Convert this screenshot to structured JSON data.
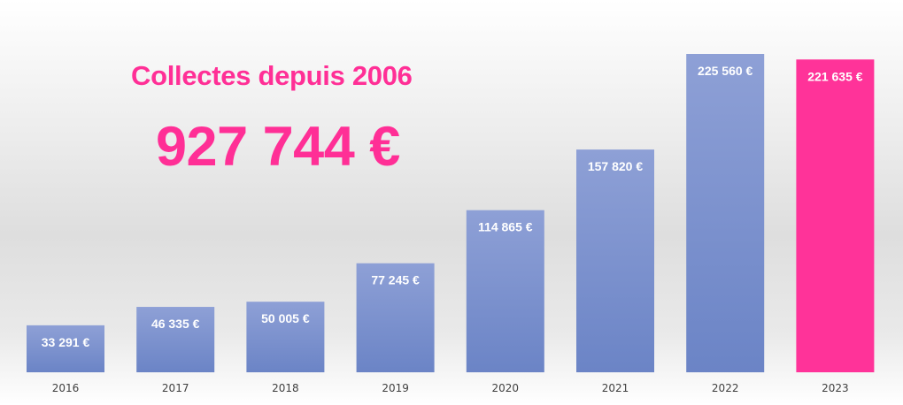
{
  "headline": "Collectes depuis 2006",
  "total": "927 744 €",
  "chart_data": {
    "type": "bar",
    "categories": [
      "2016",
      "2017",
      "2018",
      "2019",
      "2020",
      "2021",
      "2022",
      "2023"
    ],
    "values": [
      33291,
      46335,
      50005,
      77245,
      114865,
      157820,
      225560,
      221635
    ],
    "value_labels": [
      "33 291 €",
      "46 335 €",
      "50 005 €",
      "77 245 €",
      "114 865 €",
      "157 820 €",
      "225 560 €",
      "221 635 €"
    ],
    "ylim": [
      0,
      225560
    ],
    "grid": false,
    "legend": "none",
    "colors": {
      "default_top": "#8ea0d6",
      "default_bottom": "#6b84c6",
      "highlight": "#ff3399",
      "label": "#ffffff",
      "axis_label": "#404040"
    },
    "highlight_index": 7
  }
}
